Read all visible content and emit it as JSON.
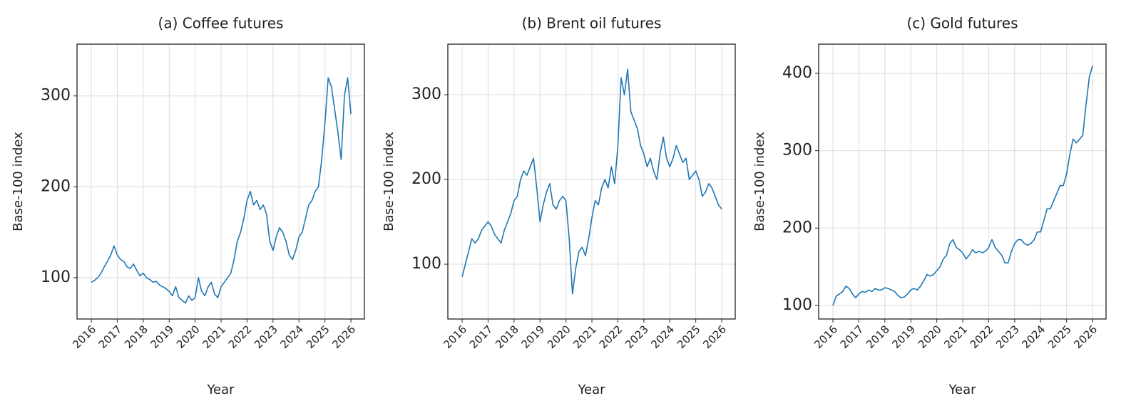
{
  "chart_data": [
    {
      "type": "line",
      "title": "(a) Coffee futures",
      "x_label": "Year",
      "y_label": "Base-100 index",
      "color": "#1f77b4",
      "grid": true,
      "x": [
        2016,
        2016.125,
        2016.25,
        2016.375,
        2016.5,
        2016.625,
        2016.75,
        2016.875,
        2017,
        2017.125,
        2017.25,
        2017.375,
        2017.5,
        2017.625,
        2017.75,
        2017.875,
        2018,
        2018.125,
        2018.25,
        2018.375,
        2018.5,
        2018.625,
        2018.75,
        2018.875,
        2019,
        2019.125,
        2019.25,
        2019.375,
        2019.5,
        2019.625,
        2019.75,
        2019.875,
        2020,
        2020.125,
        2020.25,
        2020.375,
        2020.5,
        2020.625,
        2020.75,
        2020.875,
        2021,
        2021.125,
        2021.25,
        2021.375,
        2021.5,
        2021.625,
        2021.75,
        2021.875,
        2022,
        2022.125,
        2022.25,
        2022.375,
        2022.5,
        2022.625,
        2022.75,
        2022.875,
        2023,
        2023.125,
        2023.25,
        2023.375,
        2023.5,
        2023.625,
        2023.75,
        2023.875,
        2024,
        2024.125,
        2024.25,
        2024.375,
        2024.5,
        2024.625,
        2024.75,
        2024.875,
        2025,
        2025.125,
        2025.25,
        2025.375,
        2025.5,
        2025.625,
        2025.75,
        2025.875,
        2026
      ],
      "values": [
        95,
        97,
        100,
        105,
        112,
        118,
        125,
        135,
        125,
        120,
        118,
        112,
        110,
        115,
        108,
        102,
        105,
        100,
        98,
        95,
        96,
        92,
        90,
        88,
        85,
        80,
        90,
        78,
        75,
        72,
        80,
        75,
        78,
        100,
        85,
        80,
        90,
        95,
        82,
        78,
        90,
        95,
        100,
        105,
        120,
        140,
        150,
        165,
        185,
        195,
        180,
        185,
        175,
        180,
        170,
        140,
        130,
        145,
        155,
        150,
        140,
        125,
        120,
        130,
        145,
        150,
        165,
        180,
        185,
        195,
        200,
        230,
        270,
        320,
        310,
        285,
        260,
        230,
        300,
        320,
        280
      ],
      "xlim": [
        2015.45,
        2026.52
      ],
      "xticks": [
        2016,
        2017,
        2018,
        2019,
        2020,
        2021,
        2022,
        2023,
        2024,
        2025,
        2026
      ],
      "ylim": [
        54.5,
        357
      ],
      "yticks": [
        100,
        200,
        300
      ]
    },
    {
      "type": "line",
      "title": "(b) Brent oil futures",
      "x_label": "Year",
      "y_label": "Base-100 index",
      "color": "#1f77b4",
      "grid": true,
      "x": [
        2016,
        2016.125,
        2016.25,
        2016.375,
        2016.5,
        2016.625,
        2016.75,
        2016.875,
        2017,
        2017.125,
        2017.25,
        2017.375,
        2017.5,
        2017.625,
        2017.75,
        2017.875,
        2018,
        2018.125,
        2018.25,
        2018.375,
        2018.5,
        2018.625,
        2018.75,
        2018.875,
        2019,
        2019.125,
        2019.25,
        2019.375,
        2019.5,
        2019.625,
        2019.75,
        2019.875,
        2020,
        2020.125,
        2020.25,
        2020.375,
        2020.5,
        2020.625,
        2020.75,
        2020.875,
        2021,
        2021.125,
        2021.25,
        2021.375,
        2021.5,
        2021.625,
        2021.75,
        2021.875,
        2022,
        2022.125,
        2022.25,
        2022.375,
        2022.5,
        2022.625,
        2022.75,
        2022.875,
        2023,
        2023.125,
        2023.25,
        2023.375,
        2023.5,
        2023.625,
        2023.75,
        2023.875,
        2024,
        2024.125,
        2024.25,
        2024.375,
        2024.5,
        2024.625,
        2024.75,
        2024.875,
        2025,
        2025.125,
        2025.25,
        2025.375,
        2025.5,
        2025.625,
        2025.75,
        2025.875,
        2026
      ],
      "values": [
        85,
        100,
        115,
        130,
        125,
        130,
        140,
        145,
        150,
        145,
        135,
        130,
        125,
        140,
        150,
        160,
        175,
        180,
        200,
        210,
        205,
        215,
        225,
        190,
        150,
        170,
        185,
        195,
        170,
        165,
        175,
        180,
        175,
        130,
        65,
        95,
        115,
        120,
        110,
        130,
        155,
        175,
        170,
        190,
        200,
        190,
        215,
        195,
        240,
        320,
        300,
        330,
        280,
        270,
        260,
        240,
        230,
        215,
        225,
        210,
        200,
        230,
        250,
        225,
        215,
        225,
        240,
        230,
        220,
        225,
        200,
        205,
        210,
        200,
        180,
        185,
        195,
        190,
        180,
        170,
        165
      ],
      "xlim": [
        2015.45,
        2026.52
      ],
      "xticks": [
        2016,
        2017,
        2018,
        2019,
        2020,
        2021,
        2022,
        2023,
        2024,
        2025,
        2026
      ],
      "ylim": [
        35.3,
        359.7
      ],
      "yticks": [
        100,
        200,
        300
      ]
    },
    {
      "type": "line",
      "title": "(c) Gold futures",
      "x_label": "Year",
      "y_label": "Base-100 index",
      "color": "#1f77b4",
      "grid": true,
      "x": [
        2016,
        2016.125,
        2016.25,
        2016.375,
        2016.5,
        2016.625,
        2016.75,
        2016.875,
        2017,
        2017.125,
        2017.25,
        2017.375,
        2017.5,
        2017.625,
        2017.75,
        2017.875,
        2018,
        2018.125,
        2018.25,
        2018.375,
        2018.5,
        2018.625,
        2018.75,
        2018.875,
        2019,
        2019.125,
        2019.25,
        2019.375,
        2019.5,
        2019.625,
        2019.75,
        2019.875,
        2020,
        2020.125,
        2020.25,
        2020.375,
        2020.5,
        2020.625,
        2020.75,
        2020.875,
        2021,
        2021.125,
        2021.25,
        2021.375,
        2021.5,
        2021.625,
        2021.75,
        2021.875,
        2022,
        2022.125,
        2022.25,
        2022.375,
        2022.5,
        2022.625,
        2022.75,
        2022.875,
        2023,
        2023.125,
        2023.25,
        2023.375,
        2023.5,
        2023.625,
        2023.75,
        2023.875,
        2024,
        2024.125,
        2024.25,
        2024.375,
        2024.5,
        2024.625,
        2024.75,
        2024.875,
        2025,
        2025.125,
        2025.25,
        2025.375,
        2025.5,
        2025.625,
        2025.75,
        2025.875,
        2026
      ],
      "values": [
        100,
        112,
        115,
        118,
        125,
        122,
        115,
        110,
        115,
        118,
        117,
        120,
        118,
        122,
        120,
        120,
        123,
        122,
        120,
        118,
        113,
        110,
        111,
        115,
        120,
        122,
        120,
        125,
        132,
        140,
        138,
        140,
        145,
        150,
        160,
        165,
        180,
        185,
        175,
        172,
        168,
        160,
        165,
        172,
        168,
        170,
        168,
        170,
        175,
        185,
        175,
        170,
        165,
        155,
        155,
        170,
        180,
        185,
        185,
        180,
        178,
        180,
        185,
        195,
        195,
        210,
        225,
        225,
        235,
        245,
        255,
        255,
        270,
        295,
        315,
        310,
        315,
        320,
        360,
        395,
        410
      ],
      "xlim": [
        2015.45,
        2026.52
      ],
      "xticks": [
        2016,
        2017,
        2018,
        2019,
        2020,
        2021,
        2022,
        2023,
        2024,
        2025,
        2026
      ],
      "ylim": [
        82.5,
        437.7
      ],
      "yticks": [
        100,
        200,
        300,
        400
      ]
    }
  ]
}
